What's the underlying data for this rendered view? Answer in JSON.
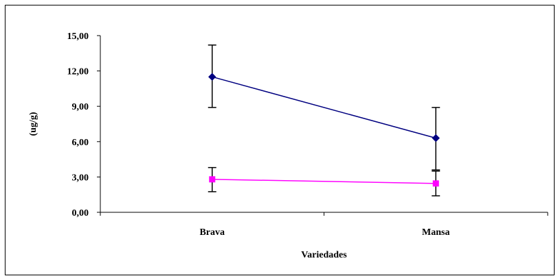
{
  "chart_data": {
    "type": "line",
    "title": "",
    "xlabel": "Variedades",
    "ylabel": "(ug/g)",
    "categories": [
      "Brava",
      "Mansa"
    ],
    "ylim": [
      0,
      15
    ],
    "yticks": [
      "0,00",
      "3,00",
      "6,00",
      "9,00",
      "12,00",
      "15,00"
    ],
    "grid": false,
    "legend": "none",
    "series": [
      {
        "color": "#000080",
        "marker": "diamond",
        "values": [
          11.5,
          6.3
        ],
        "error_low": [
          8.9,
          3.6
        ],
        "error_high": [
          14.2,
          8.9
        ]
      },
      {
        "color": "#ff00ff",
        "marker": "square",
        "values": [
          2.8,
          2.45
        ],
        "error_low": [
          1.75,
          1.4
        ],
        "error_high": [
          3.8,
          3.5
        ]
      }
    ]
  }
}
